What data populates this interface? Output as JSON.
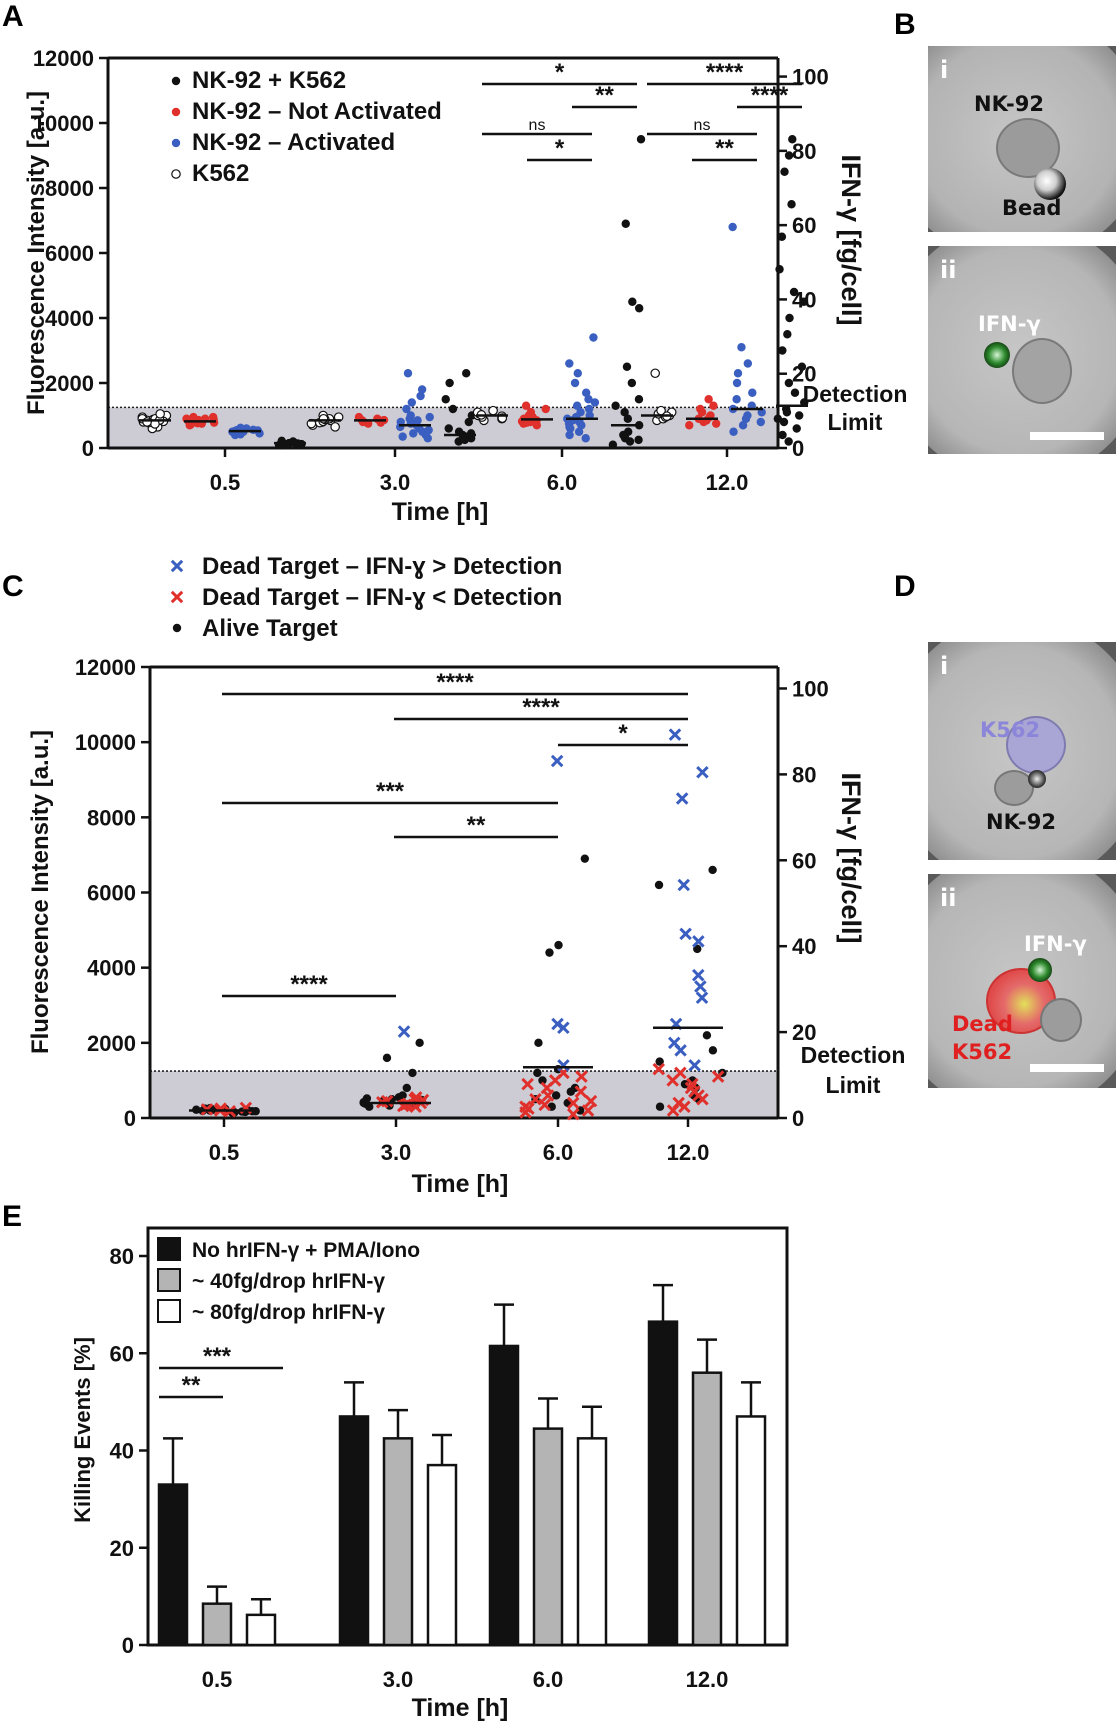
{
  "panels": {
    "A": "A",
    "B": "B",
    "C": "C",
    "D": "D",
    "E": "E"
  },
  "chart_data": [
    {
      "id": "A",
      "type": "scatter",
      "xlabel": "Time [h]",
      "ylabel": "Fluorescence Intensity [a.u.]",
      "y2label": "IFN-γ [fg/cell]",
      "categories": [
        "0.5",
        "3.0",
        "6.0",
        "12.0"
      ],
      "ylim": [
        0,
        12000
      ],
      "yticks": [
        0,
        2000,
        4000,
        6000,
        8000,
        10000,
        12000
      ],
      "y2lim": [
        0,
        105
      ],
      "y2ticks": [
        0,
        20,
        40,
        60,
        80,
        100
      ],
      "detection_limit": 1250,
      "detection_label": [
        "Detection",
        "Limit"
      ],
      "legend": [
        {
          "label": "NK-92 + K562",
          "color": "#111111",
          "marker": "dot"
        },
        {
          "label": "NK-92 – Not Activated",
          "color": "#e0302c",
          "marker": "dot"
        },
        {
          "label": "NK-92 – Activated",
          "color": "#3a5fc0",
          "marker": "dot"
        },
        {
          "label": "K562",
          "color": "#ffffff",
          "marker": "open"
        }
      ],
      "groups": [
        {
          "series": "K562",
          "cat": "0.5",
          "median": 850,
          "values": [
            700,
            750,
            800,
            850,
            880,
            900,
            950,
            1000,
            650,
            600,
            780,
            820,
            860,
            900,
            740,
            800,
            1050
          ]
        },
        {
          "series": "NK-92 – Not Activated",
          "cat": "0.5",
          "median": 820,
          "values": [
            700,
            750,
            800,
            850,
            900,
            950,
            780,
            820,
            860,
            880,
            720,
            760,
            840,
            900,
            950
          ]
        },
        {
          "series": "NK-92 – Activated",
          "cat": "0.5",
          "median": 520,
          "values": [
            400,
            450,
            500,
            550,
            600,
            480,
            520,
            560,
            620,
            420,
            500,
            540
          ]
        },
        {
          "series": "NK-92 + K562",
          "cat": "0.5",
          "median": 150,
          "values": [
            80,
            120,
            150,
            180,
            200,
            100,
            140,
            160,
            90,
            220,
            130
          ]
        },
        {
          "series": "K562",
          "cat": "3.0",
          "median": 850,
          "values": [
            700,
            750,
            800,
            850,
            900,
            950,
            780,
            820,
            880,
            1000,
            650,
            900
          ]
        },
        {
          "series": "NK-92 – Not Activated",
          "cat": "3.0",
          "median": 850,
          "values": [
            750,
            800,
            850,
            900,
            950,
            820,
            880,
            780,
            860
          ]
        },
        {
          "series": "NK-92 – Activated",
          "cat": "3.0",
          "median": 700,
          "values": [
            300,
            400,
            500,
            600,
            700,
            800,
            900,
            1000,
            1200,
            1400,
            1600,
            1800,
            2300,
            550,
            650,
            750,
            850,
            450,
            350,
            950
          ]
        },
        {
          "series": "NK-92 + K562",
          "cat": "3.0",
          "median": 400,
          "values": [
            200,
            300,
            400,
            500,
            600,
            800,
            1000,
            1200,
            1500,
            2000,
            2300,
            350,
            250,
            450
          ]
        },
        {
          "series": "K562",
          "cat": "6.0",
          "median": 1000,
          "values": [
            850,
            900,
            950,
            1000,
            1050,
            1100,
            1150,
            980,
            920,
            1020
          ]
        },
        {
          "series": "NK-92 – Not Activated",
          "cat": "6.0",
          "median": 880,
          "values": [
            700,
            750,
            800,
            850,
            900,
            950,
            1000,
            1100,
            1200,
            1300,
            780,
            820
          ]
        },
        {
          "series": "NK-92 – Activated",
          "cat": "6.0",
          "median": 900,
          "values": [
            300,
            400,
            500,
            600,
            700,
            800,
            900,
            1000,
            1100,
            1200,
            1300,
            1400,
            1500,
            1700,
            2000,
            2300,
            2600,
            3400,
            650,
            750,
            850,
            950
          ]
        },
        {
          "series": "NK-92 + K562",
          "cat": "6.0",
          "median": 700,
          "values": [
            100,
            200,
            300,
            400,
            500,
            700,
            900,
            1100,
            1300,
            1500,
            2000,
            2500,
            4300,
            4500,
            6900,
            9500,
            250,
            350
          ]
        },
        {
          "series": "K562",
          "cat": "12.0",
          "median": 1000,
          "values": [
            850,
            900,
            950,
            1000,
            1050,
            1100,
            1150,
            980,
            2300
          ]
        },
        {
          "series": "NK-92 – Not Activated",
          "cat": "12.0",
          "median": 900,
          "values": [
            700,
            750,
            800,
            850,
            900,
            950,
            1000,
            1100,
            1200,
            1300,
            1500
          ]
        },
        {
          "series": "NK-92 – Activated",
          "cat": "12.0",
          "median": 1200,
          "values": [
            500,
            700,
            900,
            1100,
            1300,
            1500,
            1700,
            2000,
            2300,
            2600,
            3100,
            6800,
            800,
            1000,
            1200
          ]
        },
        {
          "series": "NK-92 + K562",
          "cat": "12.0",
          "median": 1300,
          "values": [
            200,
            400,
            600,
            800,
            1000,
            1200,
            1400,
            1700,
            2000,
            2500,
            3000,
            3500,
            4000,
            4500,
            4800,
            5500,
            6500,
            7500,
            8500,
            9000,
            9500,
            1100,
            900
          ]
        }
      ],
      "significance": [
        {
          "label": "*",
          "from": "6.0 NK-92 – Not Activated",
          "to": "6.0 NK-92 + K562"
        },
        {
          "label": "**",
          "from": "6.0 NK-92 – Activated",
          "to": "6.0 NK-92 + K562"
        },
        {
          "label": "ns",
          "from": "6.0 NK-92 – Not Activated",
          "to": "6.0 NK-92 – Activated"
        },
        {
          "label": "*",
          "from": "6.0 NK-92 – Not Activated",
          "to": "6.0 NK-92 – Activated"
        },
        {
          "label": "****",
          "from": "12.0 NK-92 – Not Activated",
          "to": "12.0 NK-92 + K562"
        },
        {
          "label": "****",
          "from": "12.0 NK-92 – Activated",
          "to": "12.0 NK-92 + K562"
        },
        {
          "label": "ns",
          "from": "12.0 NK-92 – Not Activated",
          "to": "12.0 NK-92 – Activated"
        },
        {
          "label": "**",
          "from": "12.0 NK-92 – Activated",
          "to": "12.0 NK-92 + K562"
        }
      ]
    },
    {
      "id": "C",
      "type": "scatter",
      "xlabel": "Time [h]",
      "ylabel": "Fluorescence Intensity [a.u.]",
      "y2label": "IFN-γ [fg/cell]",
      "categories": [
        "0.5",
        "3.0",
        "6.0",
        "12.0"
      ],
      "ylim": [
        0,
        12000
      ],
      "yticks": [
        0,
        2000,
        4000,
        6000,
        8000,
        10000,
        12000
      ],
      "y2lim": [
        0,
        105
      ],
      "y2ticks": [
        0,
        20,
        40,
        60,
        80,
        100
      ],
      "detection_limit": 1250,
      "detection_label": [
        "Detection",
        "Limit"
      ],
      "legend": [
        {
          "label": "Dead Target – IFN-ɣ > Detection",
          "color": "#3a5fc0",
          "marker": "x"
        },
        {
          "label": "Dead Target – IFN-ɣ < Detection",
          "color": "#e0302c",
          "marker": "x"
        },
        {
          "label": "Alive Target",
          "color": "#111111",
          "marker": "dot"
        }
      ],
      "groups": [
        {
          "cat": "0.5",
          "median": 200,
          "alive": [
            150,
            180,
            200,
            220,
            250,
            170,
            190,
            210,
            160,
            230,
            140,
            200,
            180,
            240,
            260
          ],
          "dead_low": [
            250,
            200,
            180,
            230,
            270
          ],
          "dead_high": []
        },
        {
          "cat": "3.0",
          "median": 400,
          "alive": [
            300,
            350,
            400,
            450,
            500,
            550,
            600,
            800,
            1200,
            1600,
            2000,
            420,
            380,
            330,
            480,
            520
          ],
          "dead_low": [
            300,
            350,
            400,
            450,
            500,
            550,
            320,
            380,
            420,
            480
          ],
          "dead_high": [
            2300
          ]
        },
        {
          "cat": "6.0",
          "median": 1350,
          "alive": [
            200,
            400,
            600,
            800,
            1000,
            1200,
            1300,
            2000,
            4400,
            4600,
            6900,
            300,
            500,
            700
          ],
          "dead_low": [
            100,
            200,
            300,
            400,
            500,
            600,
            700,
            800,
            900,
            1000,
            1100,
            1200,
            150,
            250,
            350,
            450
          ],
          "dead_high": [
            2500,
            2400,
            1400,
            9500
          ]
        },
        {
          "cat": "12.0",
          "median": 2400,
          "alive": [
            300,
            600,
            900,
            1200,
            1500,
            1800,
            2200,
            4500,
            6200,
            6600,
            800,
            1000,
            500
          ],
          "dead_low": [
            300,
            500,
            700,
            900,
            1100,
            1300,
            400,
            600,
            800,
            1000,
            200,
            1200
          ],
          "dead_high": [
            1400,
            1800,
            2000,
            2500,
            3200,
            3500,
            3800,
            4700,
            4900,
            6200,
            8500,
            9200,
            10200
          ]
        }
      ],
      "significance": [
        {
          "label": "****",
          "from": "0.5",
          "to": "12.0"
        },
        {
          "label": "****",
          "from": "3.0",
          "to": "12.0"
        },
        {
          "label": "*",
          "from": "6.0",
          "to": "12.0"
        },
        {
          "label": "***",
          "from": "0.5",
          "to": "6.0"
        },
        {
          "label": "**",
          "from": "3.0",
          "to": "6.0"
        },
        {
          "label": "****",
          "from": "0.5",
          "to": "3.0"
        }
      ]
    },
    {
      "id": "E",
      "type": "bar",
      "xlabel": "Time [h]",
      "ylabel": "Killing Events [%]",
      "categories": [
        "0.5",
        "3.0",
        "6.0",
        "12.0"
      ],
      "ylim": [
        0,
        80
      ],
      "yticks": [
        0,
        20,
        40,
        60,
        80
      ],
      "series": [
        {
          "name": "No hrIFN-γ + PMA/Iono",
          "color": "#111111",
          "values": [
            33,
            47,
            61.5,
            66.5
          ],
          "errors": [
            9.5,
            7,
            8.5,
            7.5
          ]
        },
        {
          "name": "~ 40fg/drop hrIFN-γ",
          "color": "#b4b4b4",
          "values": [
            8.5,
            42.5,
            44.5,
            56
          ],
          "errors": [
            3.5,
            5.8,
            6.2,
            6.8
          ]
        },
        {
          "name": "~ 80fg/drop hrIFN-γ",
          "color": "#ffffff",
          "values": [
            6.2,
            37,
            42.5,
            47
          ],
          "errors": [
            3.2,
            6.2,
            6.5,
            7
          ]
        }
      ],
      "significance": [
        {
          "label": "**",
          "from": "No hrIFN-γ + PMA/Iono",
          "to": "~ 40fg/drop hrIFN-γ",
          "cat": "0.5"
        },
        {
          "label": "***",
          "from": "No hrIFN-γ + PMA/Iono",
          "to": "~ 80fg/drop hrIFN-γ",
          "cat": "0.5"
        }
      ]
    }
  ],
  "micrographs": {
    "B": {
      "i": {
        "roman": "i",
        "labels": [
          "NK-92",
          "Bead"
        ]
      },
      "ii": {
        "roman": "ii",
        "labels": [
          "IFN-γ"
        ]
      }
    },
    "D": {
      "i": {
        "roman": "i",
        "labels": [
          "K562",
          "NK-92"
        ]
      },
      "ii": {
        "roman": "ii",
        "labels": [
          "IFN-γ",
          "Dead",
          "K562"
        ]
      }
    }
  }
}
